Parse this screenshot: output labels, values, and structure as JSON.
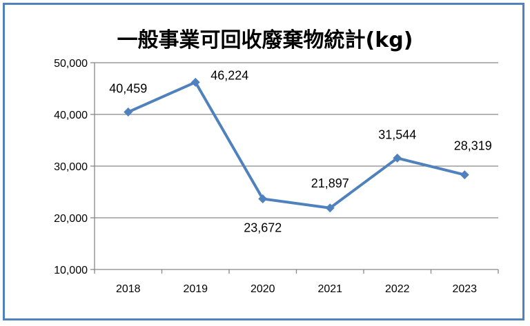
{
  "chart_data": {
    "type": "line",
    "title": "一般事業可回收廢棄物統計(kg)",
    "categories": [
      "2018",
      "2019",
      "2020",
      "2021",
      "2022",
      "2023"
    ],
    "series": [
      {
        "values": [
          40459,
          46224,
          23672,
          21897,
          31544,
          28319
        ]
      }
    ],
    "data_labels": [
      "40,459",
      "46,224",
      "23,672",
      "21,897",
      "31,544",
      "28,319"
    ],
    "y_ticks": [
      "10,000",
      "20,000",
      "30,000",
      "40,000",
      "50,000"
    ],
    "ylim": [
      10000,
      50000
    ],
    "grid": true,
    "legend": "none",
    "line_color": "#4f81bd",
    "frame_color": "#4f81bd",
    "grid_color": "#868686"
  }
}
